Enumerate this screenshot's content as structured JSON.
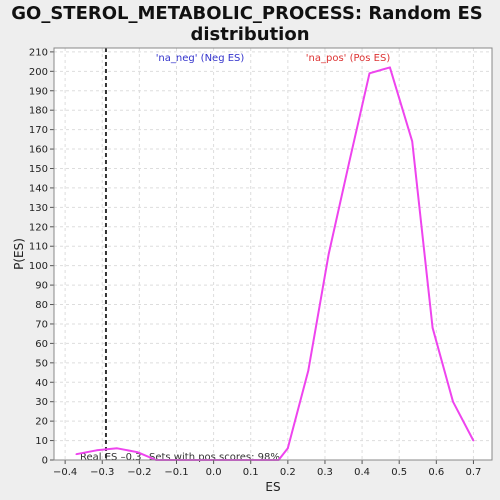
{
  "chart_data": {
    "type": "line",
    "title_lines": [
      "GO_STEROL_METABOLIC_PROCESS: Random ES",
      "distribution"
    ],
    "xlabel": "ES",
    "ylabel": "P(ES)",
    "xlim": [
      -0.43,
      0.75
    ],
    "ylim": [
      0,
      212
    ],
    "xticks": [
      -0.4,
      -0.3,
      -0.2,
      -0.1,
      0.0,
      0.1,
      0.2,
      0.3,
      0.4,
      0.5,
      0.6,
      0.7
    ],
    "yticks": [
      0,
      10,
      20,
      30,
      40,
      50,
      60,
      70,
      80,
      90,
      100,
      110,
      120,
      130,
      140,
      150,
      160,
      170,
      180,
      190,
      200,
      210
    ],
    "grid": true,
    "series": [
      {
        "color": "#ee44ee",
        "x": [
          -0.37,
          -0.315,
          -0.26,
          -0.205,
          -0.155,
          -0.1,
          -0.045,
          0.01,
          0.065,
          0.12,
          0.175,
          0.2,
          0.255,
          0.31,
          0.365,
          0.42,
          0.475,
          0.535,
          0.59,
          0.645,
          0.7
        ],
        "y": [
          3,
          5,
          6,
          4,
          0,
          0,
          0,
          0,
          0,
          0,
          0,
          6,
          46,
          106,
          153,
          199,
          202,
          164,
          68,
          30,
          10
        ]
      }
    ],
    "real_es_line": {
      "x": -0.29,
      "label": "Real ES –0.3"
    },
    "annotations": {
      "neg_label": "'na_neg' (Neg ES)",
      "pos_label": "'na_pos' (Pos ES)",
      "pos_scores_label": "Sets with pos scores: 98%"
    },
    "colors": {
      "neg_label": "#3333cc",
      "pos_label": "#dd3333",
      "line": "#ee44ee",
      "real_es": "#333333",
      "grid": "#dddddd",
      "plot_bg": "#ffffff",
      "frame": "#888888"
    }
  }
}
